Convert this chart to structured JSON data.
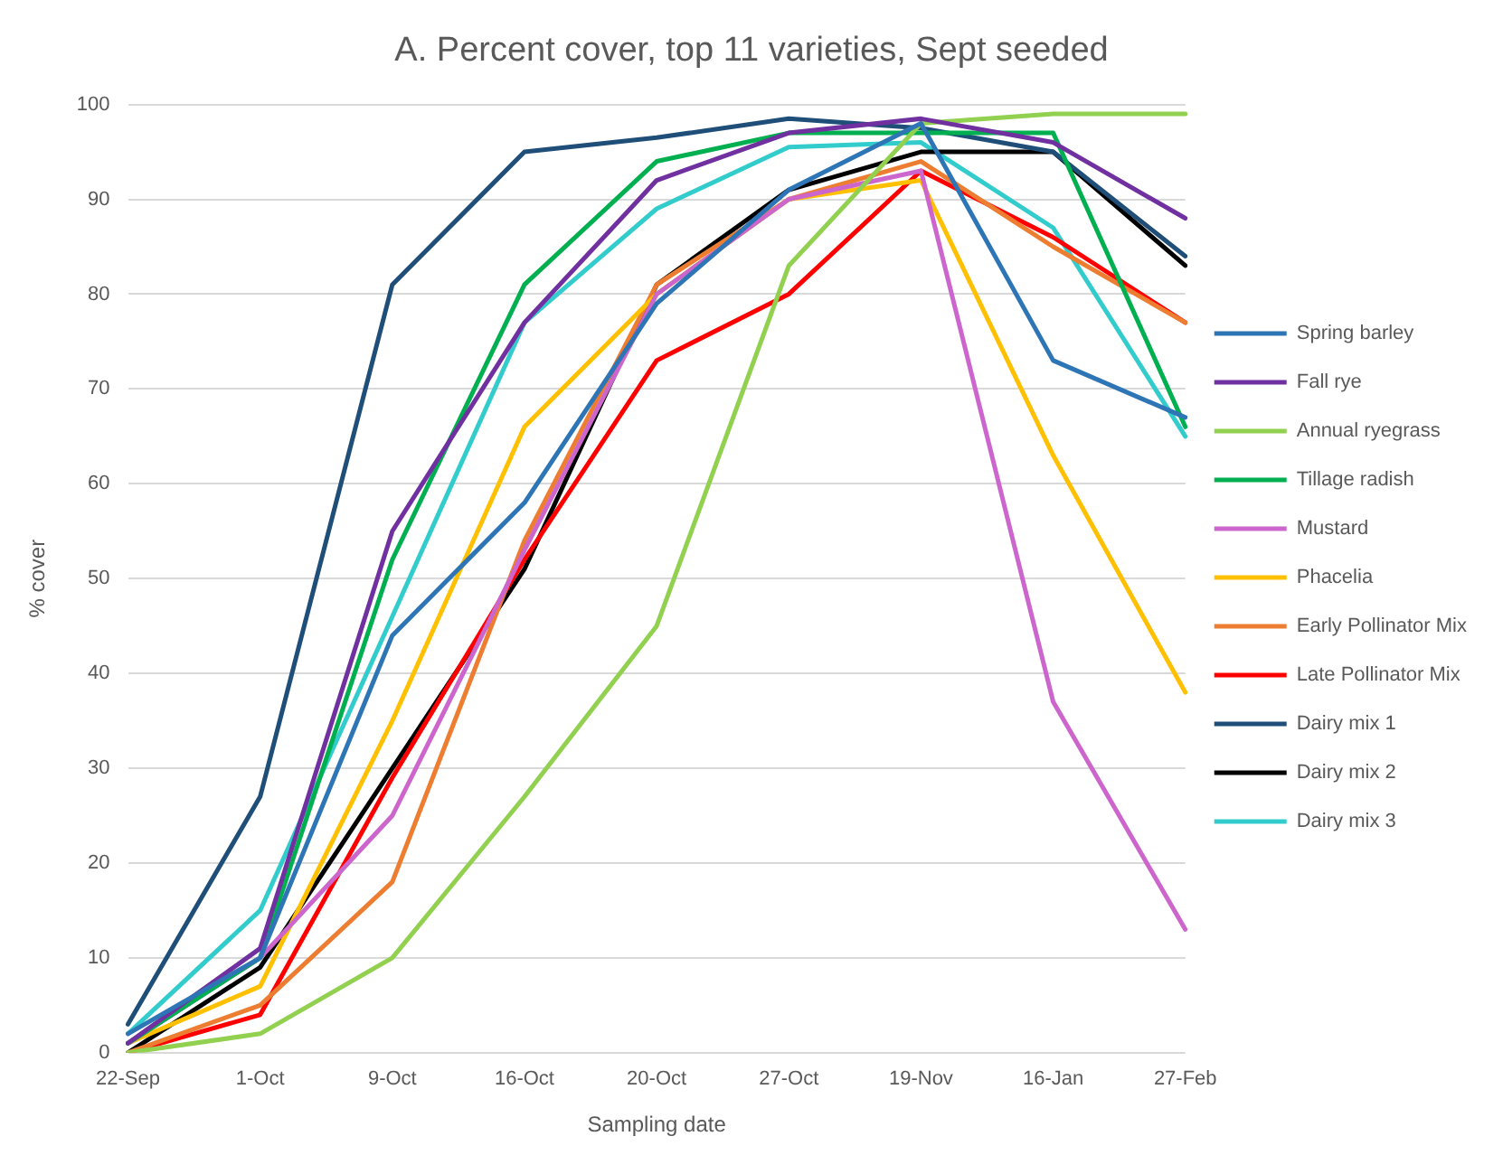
{
  "chart_data": {
    "type": "line",
    "title": "A. Percent cover, top 11 varieties, Sept seeded",
    "xlabel": "Sampling date",
    "ylabel": "% cover",
    "categories": [
      "22-Sep",
      "1-Oct",
      "9-Oct",
      "16-Oct",
      "20-Oct",
      "27-Oct",
      "19-Nov",
      "16-Jan",
      "27-Feb"
    ],
    "ylim": [
      0,
      100
    ],
    "yticks": [
      0,
      10,
      20,
      30,
      40,
      50,
      60,
      70,
      80,
      90,
      100
    ],
    "grid": "y",
    "legend": "right",
    "marker": "none",
    "line_style": "solid",
    "series": [
      {
        "name": "Spring barley",
        "color": "#2e75b6",
        "values": [
          2,
          10,
          44,
          58,
          79,
          91,
          98,
          73,
          67
        ]
      },
      {
        "name": "Fall rye",
        "color": "#7030a0",
        "values": [
          1,
          11,
          55,
          77,
          92,
          97,
          98.5,
          96,
          88
        ]
      },
      {
        "name": "Annual ryegrass",
        "color": "#92d050",
        "values": [
          0,
          2,
          10,
          27,
          45,
          83,
          98,
          99,
          99
        ]
      },
      {
        "name": "Tillage radish",
        "color": "#00b050",
        "values": [
          1,
          10,
          52,
          81,
          94,
          97,
          97,
          97,
          66
        ]
      },
      {
        "name": "Mustard",
        "color": "#cc66cc",
        "values": [
          1,
          10,
          25,
          53,
          80,
          90,
          93,
          37,
          13
        ]
      },
      {
        "name": "Phacelia",
        "color": "#ffc000",
        "values": [
          1,
          7,
          35,
          66,
          80,
          90,
          92,
          63,
          38
        ]
      },
      {
        "name": "Early Pollinator Mix",
        "color": "#ed7d31",
        "values": [
          0,
          5,
          18,
          54,
          81,
          90,
          94,
          85,
          77
        ]
      },
      {
        "name": "Late Pollinator Mix",
        "color": "#ff0000",
        "values": [
          0,
          4,
          29,
          52,
          73,
          80,
          93,
          86,
          77
        ]
      },
      {
        "name": "Dairy mix 1",
        "color": "#1f4e79",
        "values": [
          3,
          27,
          81,
          95,
          96.5,
          98.5,
          97.5,
          95,
          84
        ]
      },
      {
        "name": "Dairy mix 2",
        "color": "#000000",
        "values": [
          0,
          9,
          30,
          51,
          81,
          91,
          95,
          95,
          83
        ]
      },
      {
        "name": "Dairy mix 3",
        "color": "#33cccc",
        "values": [
          2,
          15,
          46,
          77,
          89,
          95.5,
          96,
          87,
          65
        ]
      }
    ]
  }
}
